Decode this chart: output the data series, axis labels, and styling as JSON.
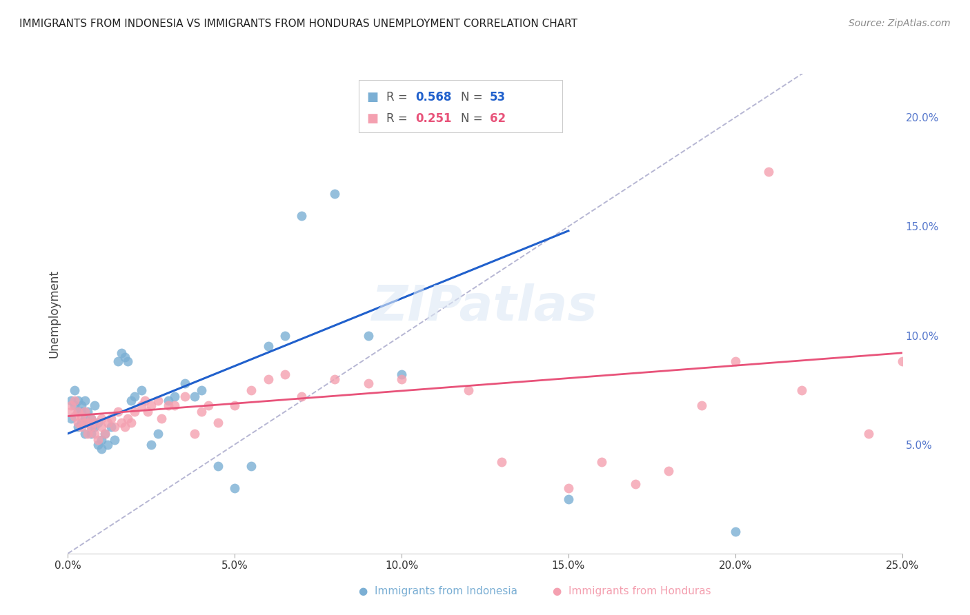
{
  "title": "IMMIGRANTS FROM INDONESIA VS IMMIGRANTS FROM HONDURAS UNEMPLOYMENT CORRELATION CHART",
  "source": "Source: ZipAtlas.com",
  "ylabel": "Unemployment",
  "xlabel_ticks": [
    "0.0%",
    "5.0%",
    "10.0%",
    "15.0%",
    "20.0%",
    "25.0%"
  ],
  "xlabel_vals": [
    0.0,
    0.05,
    0.1,
    0.15,
    0.2,
    0.25
  ],
  "ylabel_ticks": [
    "5.0%",
    "10.0%",
    "15.0%",
    "20.0%"
  ],
  "ylabel_vals": [
    0.05,
    0.1,
    0.15,
    0.2
  ],
  "xmin": 0.0,
  "xmax": 0.25,
  "ymin": 0.0,
  "ymax": 0.22,
  "indonesia_color": "#7bafd4",
  "honduras_color": "#f4a0b0",
  "indonesia_line_color": "#2060cc",
  "honduras_line_color": "#e8537a",
  "diagonal_color": "#aaaacc",
  "background_color": "#ffffff",
  "grid_color": "#dddddd",
  "title_color": "#222222",
  "right_label_color": "#5577cc",
  "indonesia_x": [
    0.001,
    0.001,
    0.002,
    0.002,
    0.003,
    0.003,
    0.003,
    0.004,
    0.004,
    0.004,
    0.005,
    0.005,
    0.005,
    0.006,
    0.006,
    0.007,
    0.007,
    0.007,
    0.008,
    0.008,
    0.009,
    0.009,
    0.01,
    0.01,
    0.011,
    0.012,
    0.013,
    0.014,
    0.015,
    0.016,
    0.017,
    0.018,
    0.019,
    0.02,
    0.022,
    0.025,
    0.027,
    0.03,
    0.032,
    0.035,
    0.038,
    0.04,
    0.045,
    0.05,
    0.055,
    0.06,
    0.065,
    0.07,
    0.08,
    0.09,
    0.1,
    0.15,
    0.2
  ],
  "indonesia_y": [
    0.062,
    0.07,
    0.068,
    0.075,
    0.065,
    0.07,
    0.058,
    0.06,
    0.065,
    0.068,
    0.055,
    0.062,
    0.07,
    0.06,
    0.065,
    0.055,
    0.058,
    0.062,
    0.058,
    0.068,
    0.05,
    0.06,
    0.048,
    0.052,
    0.055,
    0.05,
    0.058,
    0.052,
    0.088,
    0.092,
    0.09,
    0.088,
    0.07,
    0.072,
    0.075,
    0.05,
    0.055,
    0.07,
    0.072,
    0.078,
    0.072,
    0.075,
    0.04,
    0.03,
    0.04,
    0.095,
    0.1,
    0.155,
    0.165,
    0.1,
    0.082,
    0.025,
    0.01
  ],
  "honduras_x": [
    0.001,
    0.001,
    0.002,
    0.002,
    0.003,
    0.003,
    0.004,
    0.004,
    0.005,
    0.005,
    0.006,
    0.006,
    0.007,
    0.007,
    0.008,
    0.008,
    0.009,
    0.01,
    0.01,
    0.011,
    0.012,
    0.013,
    0.014,
    0.015,
    0.016,
    0.017,
    0.018,
    0.019,
    0.02,
    0.022,
    0.023,
    0.024,
    0.025,
    0.027,
    0.028,
    0.03,
    0.032,
    0.035,
    0.038,
    0.04,
    0.042,
    0.045,
    0.05,
    0.055,
    0.06,
    0.065,
    0.07,
    0.08,
    0.09,
    0.1,
    0.12,
    0.15,
    0.16,
    0.18,
    0.19,
    0.2,
    0.21,
    0.22,
    0.24,
    0.25,
    0.17,
    0.13
  ],
  "honduras_y": [
    0.065,
    0.068,
    0.063,
    0.07,
    0.06,
    0.065,
    0.058,
    0.063,
    0.06,
    0.065,
    0.055,
    0.06,
    0.058,
    0.062,
    0.055,
    0.06,
    0.052,
    0.058,
    0.062,
    0.055,
    0.06,
    0.062,
    0.058,
    0.065,
    0.06,
    0.058,
    0.062,
    0.06,
    0.065,
    0.068,
    0.07,
    0.065,
    0.068,
    0.07,
    0.062,
    0.068,
    0.068,
    0.072,
    0.055,
    0.065,
    0.068,
    0.06,
    0.068,
    0.075,
    0.08,
    0.082,
    0.072,
    0.08,
    0.078,
    0.08,
    0.075,
    0.03,
    0.042,
    0.038,
    0.068,
    0.088,
    0.175,
    0.075,
    0.055,
    0.088,
    0.032,
    0.042
  ],
  "indo_line_x0": 0.0,
  "indo_line_y0": 0.055,
  "indo_line_x1": 0.15,
  "indo_line_y1": 0.148,
  "hond_line_x0": 0.0,
  "hond_line_y0": 0.063,
  "hond_line_x1": 0.25,
  "hond_line_y1": 0.092
}
